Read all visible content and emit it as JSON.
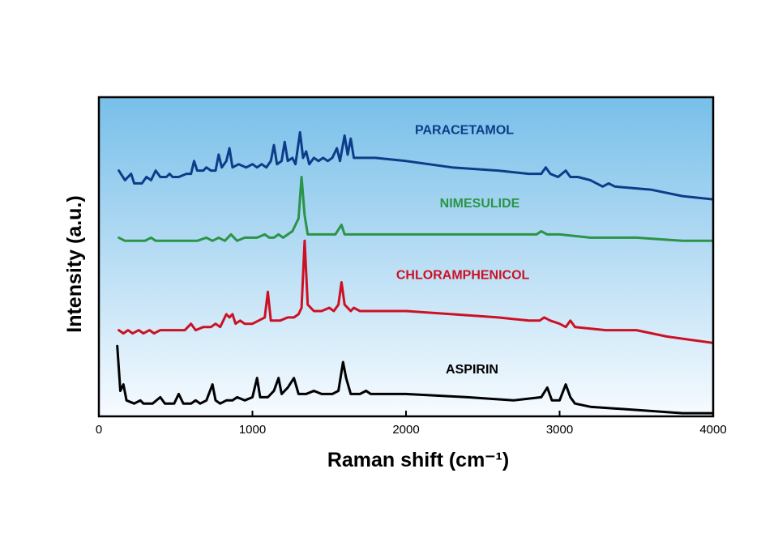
{
  "chart_data": {
    "type": "line",
    "title": "",
    "xlabel": "Raman shift (cm⁻¹)",
    "ylabel": "Intensity (a.u.)",
    "xlim": [
      0,
      4000
    ],
    "ylim": [
      0,
      1
    ],
    "xticks": [
      "0",
      "1000",
      "2000",
      "3000",
      "4000"
    ],
    "yticks": [],
    "grid": false,
    "legend": "inline labels",
    "background_gradient": [
      "#78bfe9",
      "#f7fbff"
    ],
    "series": [
      {
        "name": "PARACETAMOL",
        "color": "#0d3d8a",
        "label_at": [
          2380,
          0.885
        ],
        "points": [
          [
            130,
            0.77
          ],
          [
            170,
            0.74
          ],
          [
            210,
            0.76
          ],
          [
            230,
            0.73
          ],
          [
            280,
            0.73
          ],
          [
            310,
            0.75
          ],
          [
            340,
            0.74
          ],
          [
            370,
            0.77
          ],
          [
            400,
            0.75
          ],
          [
            440,
            0.75
          ],
          [
            460,
            0.76
          ],
          [
            480,
            0.75
          ],
          [
            520,
            0.75
          ],
          [
            570,
            0.76
          ],
          [
            600,
            0.76
          ],
          [
            620,
            0.8
          ],
          [
            640,
            0.77
          ],
          [
            680,
            0.77
          ],
          [
            700,
            0.78
          ],
          [
            730,
            0.77
          ],
          [
            760,
            0.77
          ],
          [
            780,
            0.82
          ],
          [
            800,
            0.78
          ],
          [
            830,
            0.8
          ],
          [
            850,
            0.84
          ],
          [
            870,
            0.78
          ],
          [
            910,
            0.79
          ],
          [
            960,
            0.78
          ],
          [
            1000,
            0.79
          ],
          [
            1030,
            0.78
          ],
          [
            1060,
            0.79
          ],
          [
            1090,
            0.78
          ],
          [
            1120,
            0.8
          ],
          [
            1140,
            0.85
          ],
          [
            1160,
            0.79
          ],
          [
            1190,
            0.8
          ],
          [
            1210,
            0.86
          ],
          [
            1230,
            0.8
          ],
          [
            1260,
            0.81
          ],
          [
            1280,
            0.79
          ],
          [
            1310,
            0.89
          ],
          [
            1330,
            0.81
          ],
          [
            1350,
            0.83
          ],
          [
            1370,
            0.79
          ],
          [
            1400,
            0.81
          ],
          [
            1430,
            0.8
          ],
          [
            1460,
            0.81
          ],
          [
            1490,
            0.8
          ],
          [
            1520,
            0.81
          ],
          [
            1550,
            0.84
          ],
          [
            1570,
            0.8
          ],
          [
            1600,
            0.88
          ],
          [
            1620,
            0.82
          ],
          [
            1640,
            0.87
          ],
          [
            1660,
            0.81
          ],
          [
            1800,
            0.81
          ],
          [
            2000,
            0.8
          ],
          [
            2300,
            0.78
          ],
          [
            2600,
            0.77
          ],
          [
            2800,
            0.76
          ],
          [
            2880,
            0.76
          ],
          [
            2910,
            0.78
          ],
          [
            2940,
            0.76
          ],
          [
            2990,
            0.75
          ],
          [
            3040,
            0.77
          ],
          [
            3070,
            0.75
          ],
          [
            3120,
            0.75
          ],
          [
            3200,
            0.74
          ],
          [
            3280,
            0.72
          ],
          [
            3320,
            0.73
          ],
          [
            3360,
            0.72
          ],
          [
            3600,
            0.71
          ],
          [
            3800,
            0.69
          ],
          [
            4000,
            0.68
          ]
        ]
      },
      {
        "name": "NIMESULIDE",
        "color": "#2a9448",
        "label_at": [
          2480,
          0.655
        ],
        "points": [
          [
            130,
            0.56
          ],
          [
            170,
            0.55
          ],
          [
            230,
            0.55
          ],
          [
            300,
            0.55
          ],
          [
            340,
            0.56
          ],
          [
            370,
            0.55
          ],
          [
            420,
            0.55
          ],
          [
            480,
            0.55
          ],
          [
            520,
            0.55
          ],
          [
            580,
            0.55
          ],
          [
            640,
            0.55
          ],
          [
            700,
            0.56
          ],
          [
            740,
            0.55
          ],
          [
            780,
            0.56
          ],
          [
            820,
            0.55
          ],
          [
            860,
            0.57
          ],
          [
            900,
            0.55
          ],
          [
            950,
            0.56
          ],
          [
            990,
            0.56
          ],
          [
            1030,
            0.56
          ],
          [
            1080,
            0.57
          ],
          [
            1110,
            0.56
          ],
          [
            1140,
            0.56
          ],
          [
            1170,
            0.57
          ],
          [
            1200,
            0.56
          ],
          [
            1230,
            0.57
          ],
          [
            1260,
            0.58
          ],
          [
            1280,
            0.6
          ],
          [
            1300,
            0.62
          ],
          [
            1320,
            0.75
          ],
          [
            1340,
            0.63
          ],
          [
            1360,
            0.57
          ],
          [
            1400,
            0.57
          ],
          [
            1450,
            0.57
          ],
          [
            1500,
            0.57
          ],
          [
            1540,
            0.57
          ],
          [
            1580,
            0.6
          ],
          [
            1600,
            0.57
          ],
          [
            2000,
            0.57
          ],
          [
            2500,
            0.57
          ],
          [
            2800,
            0.57
          ],
          [
            2850,
            0.57
          ],
          [
            2880,
            0.58
          ],
          [
            2920,
            0.57
          ],
          [
            3000,
            0.57
          ],
          [
            3200,
            0.56
          ],
          [
            3280,
            0.56
          ],
          [
            3500,
            0.56
          ],
          [
            3800,
            0.55
          ],
          [
            4000,
            0.55
          ]
        ]
      },
      {
        "name": "CHLORAMPHENICOL",
        "color": "#cc1125",
        "label_at": [
          2370,
          0.43
        ],
        "points": [
          [
            130,
            0.27
          ],
          [
            160,
            0.26
          ],
          [
            190,
            0.27
          ],
          [
            220,
            0.26
          ],
          [
            260,
            0.27
          ],
          [
            290,
            0.26
          ],
          [
            330,
            0.27
          ],
          [
            360,
            0.26
          ],
          [
            400,
            0.27
          ],
          [
            460,
            0.27
          ],
          [
            510,
            0.27
          ],
          [
            560,
            0.27
          ],
          [
            600,
            0.29
          ],
          [
            630,
            0.27
          ],
          [
            680,
            0.28
          ],
          [
            730,
            0.28
          ],
          [
            760,
            0.29
          ],
          [
            790,
            0.28
          ],
          [
            830,
            0.32
          ],
          [
            850,
            0.31
          ],
          [
            870,
            0.32
          ],
          [
            890,
            0.29
          ],
          [
            920,
            0.3
          ],
          [
            950,
            0.29
          ],
          [
            1000,
            0.29
          ],
          [
            1040,
            0.3
          ],
          [
            1080,
            0.31
          ],
          [
            1100,
            0.39
          ],
          [
            1120,
            0.3
          ],
          [
            1180,
            0.3
          ],
          [
            1230,
            0.31
          ],
          [
            1270,
            0.31
          ],
          [
            1300,
            0.32
          ],
          [
            1320,
            0.34
          ],
          [
            1340,
            0.55
          ],
          [
            1360,
            0.35
          ],
          [
            1400,
            0.33
          ],
          [
            1450,
            0.33
          ],
          [
            1500,
            0.34
          ],
          [
            1530,
            0.33
          ],
          [
            1560,
            0.35
          ],
          [
            1580,
            0.42
          ],
          [
            1600,
            0.35
          ],
          [
            1640,
            0.33
          ],
          [
            1660,
            0.34
          ],
          [
            1700,
            0.33
          ],
          [
            2000,
            0.33
          ],
          [
            2300,
            0.32
          ],
          [
            2600,
            0.31
          ],
          [
            2800,
            0.3
          ],
          [
            2870,
            0.3
          ],
          [
            2900,
            0.31
          ],
          [
            2940,
            0.3
          ],
          [
            3000,
            0.29
          ],
          [
            3040,
            0.28
          ],
          [
            3070,
            0.3
          ],
          [
            3100,
            0.28
          ],
          [
            3300,
            0.27
          ],
          [
            3500,
            0.27
          ],
          [
            3700,
            0.25
          ],
          [
            4000,
            0.23
          ]
        ]
      },
      {
        "name": "ASPIRIN",
        "color": "#000000",
        "label_at": [
          2430,
          0.135
        ],
        "points": [
          [
            120,
            0.22
          ],
          [
            140,
            0.08
          ],
          [
            160,
            0.1
          ],
          [
            180,
            0.05
          ],
          [
            230,
            0.04
          ],
          [
            270,
            0.05
          ],
          [
            290,
            0.04
          ],
          [
            320,
            0.04
          ],
          [
            350,
            0.04
          ],
          [
            400,
            0.06
          ],
          [
            430,
            0.04
          ],
          [
            490,
            0.04
          ],
          [
            520,
            0.07
          ],
          [
            550,
            0.04
          ],
          [
            600,
            0.04
          ],
          [
            630,
            0.05
          ],
          [
            660,
            0.04
          ],
          [
            700,
            0.05
          ],
          [
            740,
            0.1
          ],
          [
            760,
            0.05
          ],
          [
            790,
            0.04
          ],
          [
            830,
            0.05
          ],
          [
            870,
            0.05
          ],
          [
            900,
            0.06
          ],
          [
            950,
            0.05
          ],
          [
            1000,
            0.06
          ],
          [
            1030,
            0.12
          ],
          [
            1050,
            0.06
          ],
          [
            1100,
            0.06
          ],
          [
            1140,
            0.08
          ],
          [
            1170,
            0.12
          ],
          [
            1190,
            0.07
          ],
          [
            1230,
            0.09
          ],
          [
            1270,
            0.12
          ],
          [
            1300,
            0.07
          ],
          [
            1350,
            0.07
          ],
          [
            1400,
            0.08
          ],
          [
            1450,
            0.07
          ],
          [
            1520,
            0.07
          ],
          [
            1560,
            0.08
          ],
          [
            1590,
            0.17
          ],
          [
            1610,
            0.12
          ],
          [
            1640,
            0.07
          ],
          [
            1700,
            0.07
          ],
          [
            1740,
            0.08
          ],
          [
            1770,
            0.07
          ],
          [
            2000,
            0.07
          ],
          [
            2400,
            0.06
          ],
          [
            2700,
            0.05
          ],
          [
            2880,
            0.06
          ],
          [
            2920,
            0.09
          ],
          [
            2950,
            0.05
          ],
          [
            3000,
            0.05
          ],
          [
            3040,
            0.1
          ],
          [
            3070,
            0.06
          ],
          [
            3100,
            0.04
          ],
          [
            3200,
            0.03
          ],
          [
            3500,
            0.02
          ],
          [
            3800,
            0.01
          ],
          [
            4000,
            0.01
          ]
        ]
      }
    ]
  }
}
